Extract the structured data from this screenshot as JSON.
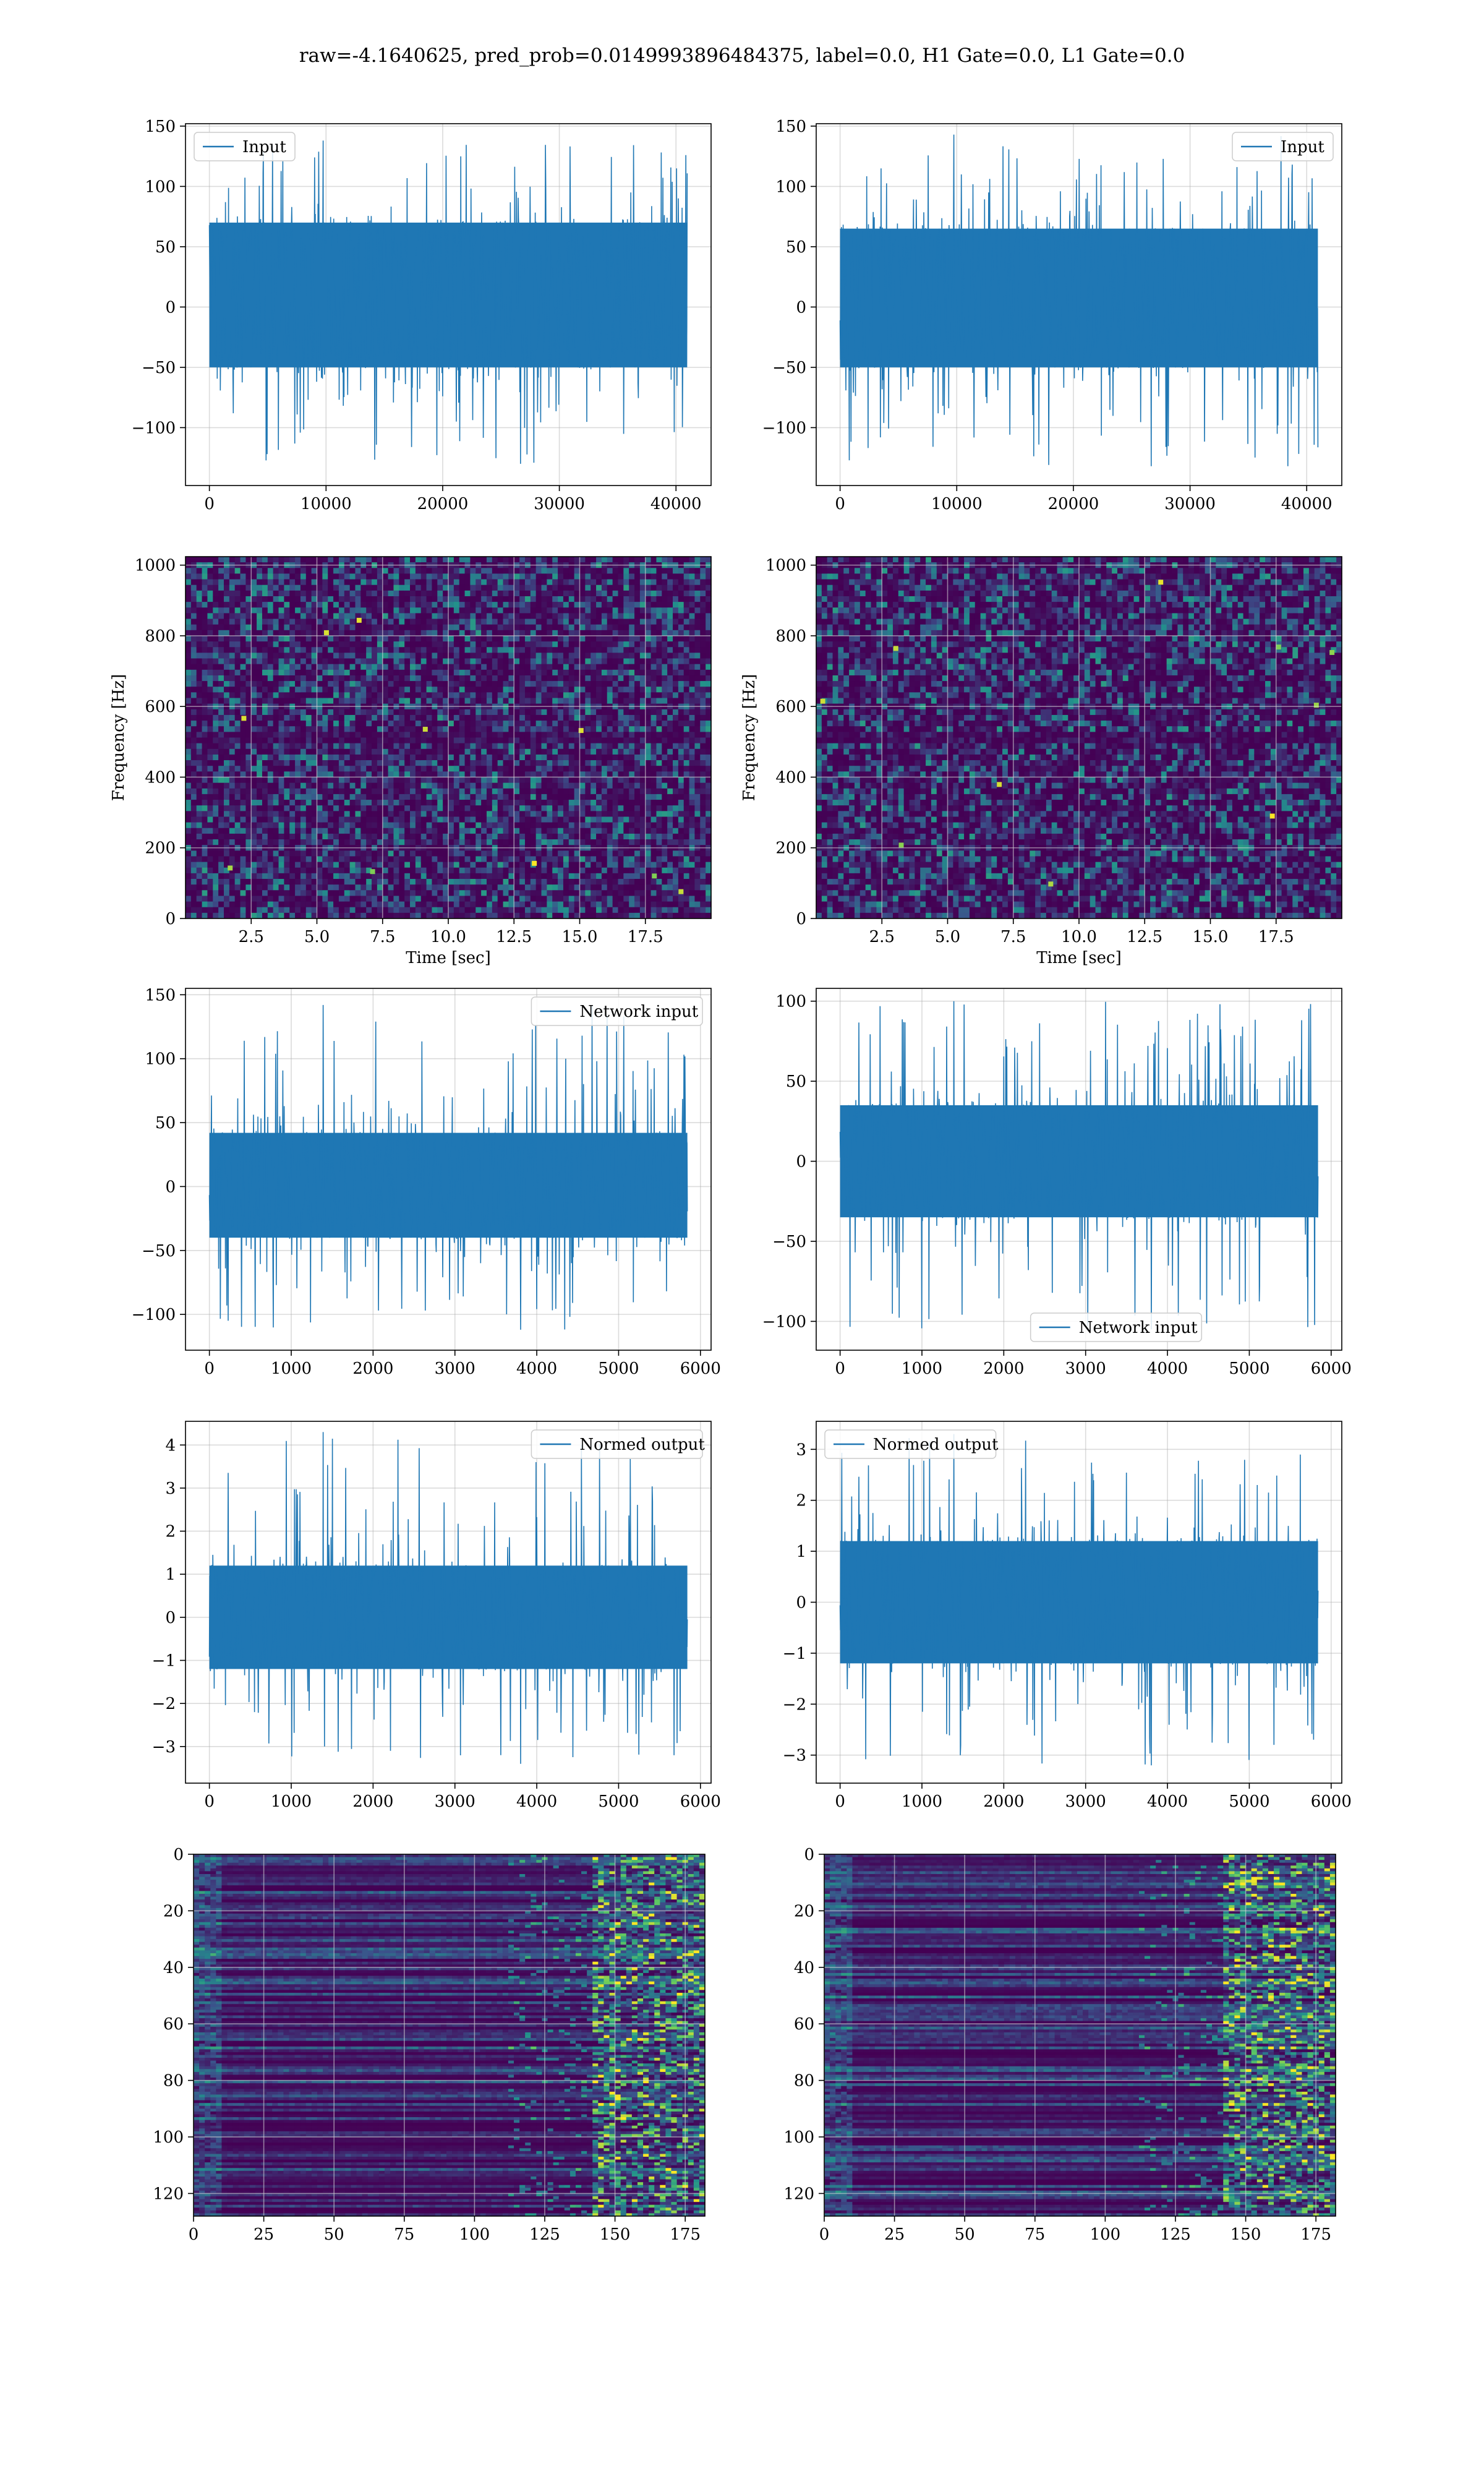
{
  "suptitle": "raw=-4.1640625, pred_prob=0.0149993896484375, label=0.0, H1 Gate=0.0, L1 Gate=0.0",
  "colors": {
    "line": "#1f77b4",
    "grid": "#b0b0b0",
    "viridis_dark": "#440154",
    "viridis_mid": "#21918c",
    "viridis_bright": "#fde725"
  },
  "chart_data": [
    {
      "id": "r1c1",
      "type": "line",
      "legend": "Input",
      "legend_loc": "upper left",
      "xlim": [
        -2048,
        43008
      ],
      "ylim": [
        -148,
        152
      ],
      "xticks": [
        0,
        10000,
        20000,
        30000,
        40000
      ],
      "yticks": [
        -100,
        -50,
        0,
        50,
        100,
        150
      ],
      "signal": {
        "x_start": 0,
        "x_end": 40960,
        "band_low": -50,
        "band_high": 70,
        "min": -130,
        "max": 138
      }
    },
    {
      "id": "r1c2",
      "type": "line",
      "legend": "Input",
      "legend_loc": "upper right",
      "xlim": [
        -2048,
        43008
      ],
      "ylim": [
        -148,
        152
      ],
      "xticks": [
        0,
        10000,
        20000,
        30000,
        40000
      ],
      "yticks": [
        -100,
        -50,
        0,
        50,
        100,
        150
      ],
      "signal": {
        "x_start": 0,
        "x_end": 40960,
        "band_low": -50,
        "band_high": 65,
        "min": -132,
        "max": 143
      }
    },
    {
      "id": "r2c1",
      "type": "heatmap",
      "subtype": "spectrogram",
      "xlabel": "Time [sec]",
      "ylabel": "Frequency [Hz]",
      "xlim": [
        0,
        20
      ],
      "ylim": [
        0,
        1024
      ],
      "xticks": [
        2.5,
        5.0,
        7.5,
        10.0,
        12.5,
        15.0,
        17.5
      ],
      "yticks": [
        0,
        200,
        400,
        600,
        800,
        1000
      ]
    },
    {
      "id": "r2c2",
      "type": "heatmap",
      "subtype": "spectrogram",
      "xlabel": "Time [sec]",
      "ylabel": "Frequency [Hz]",
      "xlim": [
        0,
        20
      ],
      "ylim": [
        0,
        1024
      ],
      "xticks": [
        2.5,
        5.0,
        7.5,
        10.0,
        12.5,
        15.0,
        17.5
      ],
      "yticks": [
        0,
        200,
        400,
        600,
        800,
        1000
      ]
    },
    {
      "id": "r3c1",
      "type": "line",
      "legend": "Network input",
      "legend_loc": "upper right",
      "xlim": [
        -292,
        6130
      ],
      "ylim": [
        -128,
        155
      ],
      "xticks": [
        0,
        1000,
        2000,
        3000,
        4000,
        5000,
        6000
      ],
      "yticks": [
        -100,
        -50,
        0,
        50,
        100,
        150
      ],
      "signal": {
        "x_start": 0,
        "x_end": 5840,
        "band_low": -40,
        "band_high": 42,
        "min": -112,
        "max": 142
      }
    },
    {
      "id": "r3c2",
      "type": "line",
      "legend": "Network input",
      "legend_loc": "lower center",
      "xlim": [
        -292,
        6130
      ],
      "ylim": [
        -118,
        108
      ],
      "xticks": [
        0,
        1000,
        2000,
        3000,
        4000,
        5000,
        6000
      ],
      "yticks": [
        -100,
        -50,
        0,
        50,
        100
      ],
      "signal": {
        "x_start": 0,
        "x_end": 5840,
        "band_low": -35,
        "band_high": 35,
        "min": -105,
        "max": 100
      }
    },
    {
      "id": "r4c1",
      "type": "line",
      "legend": "Normed output",
      "legend_loc": "upper right",
      "xlim": [
        -292,
        6130
      ],
      "ylim": [
        -3.85,
        4.55
      ],
      "xticks": [
        0,
        1000,
        2000,
        3000,
        4000,
        5000,
        6000
      ],
      "yticks": [
        -3,
        -2,
        -1,
        0,
        1,
        2,
        3,
        4
      ],
      "signal": {
        "x_start": 0,
        "x_end": 5840,
        "band_low": -1.2,
        "band_high": 1.2,
        "min": -3.4,
        "max": 4.3
      }
    },
    {
      "id": "r4c2",
      "type": "line",
      "legend": "Normed output",
      "legend_loc": "upper left",
      "xlim": [
        -292,
        6130
      ],
      "ylim": [
        -3.55,
        3.55
      ],
      "xticks": [
        0,
        1000,
        2000,
        3000,
        4000,
        5000,
        6000
      ],
      "yticks": [
        -3,
        -2,
        -1,
        0,
        1,
        2,
        3
      ],
      "signal": {
        "x_start": 0,
        "x_end": 5840,
        "band_low": -1.2,
        "band_high": 1.2,
        "min": -3.2,
        "max": 3.3
      }
    },
    {
      "id": "r5c1",
      "type": "heatmap",
      "subtype": "image",
      "xlim": [
        0,
        182
      ],
      "ylim": [
        128,
        0
      ],
      "xticks": [
        0,
        25,
        50,
        75,
        100,
        125,
        150,
        175
      ],
      "yticks": [
        0,
        20,
        40,
        60,
        80,
        100,
        120
      ]
    },
    {
      "id": "r5c2",
      "type": "heatmap",
      "subtype": "image",
      "xlim": [
        0,
        182
      ],
      "ylim": [
        128,
        0
      ],
      "xticks": [
        0,
        25,
        50,
        75,
        100,
        125,
        150,
        175
      ],
      "yticks": [
        0,
        20,
        40,
        60,
        80,
        100,
        120
      ]
    }
  ]
}
